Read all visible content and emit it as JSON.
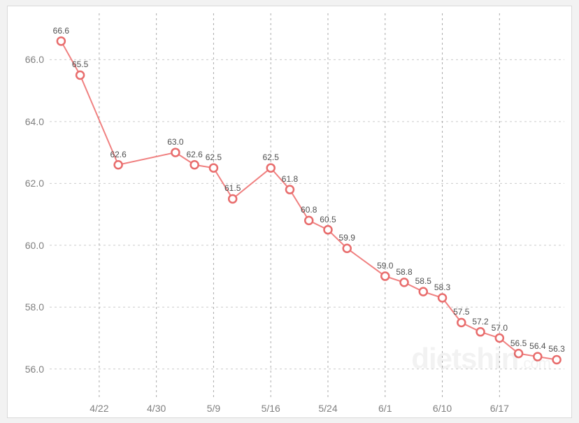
{
  "chart": {
    "type": "line",
    "background_color": "#ffffff",
    "page_background": "#f2f2f2",
    "border_color": "#d9d9d9",
    "plot": {
      "ylim": [
        55.0,
        67.5
      ],
      "ytick_step": 2.0,
      "yticks": [
        56.0,
        58.0,
        60.0,
        62.0,
        64.0,
        66.0
      ],
      "label_fontsize": 14,
      "label_color": "#808080",
      "grid_color_major": "#cccccc",
      "grid_color_minor": "#aaaaaa",
      "grid_dash": "3,4"
    },
    "x_axis": {
      "tick_labels": [
        "4/22",
        "4/30",
        "5/9",
        "5/16",
        "5/24",
        "6/1",
        "6/10",
        "6/17"
      ],
      "tick_positions": [
        2,
        5,
        8,
        11,
        14,
        17,
        20,
        23
      ]
    },
    "series": {
      "line_color": "#f08080",
      "line_width": 2,
      "marker_fill": "#ffffff",
      "marker_stroke": "#e86c6c",
      "marker_stroke_width": 2.5,
      "marker_radius": 5.5,
      "data_label_fontsize": 12,
      "data_label_color": "#505050",
      "points": [
        {
          "i": 0,
          "value": 66.6,
          "label": "66.6"
        },
        {
          "i": 1,
          "value": 65.5,
          "label": "65.5"
        },
        {
          "i": 3,
          "value": 62.6,
          "label": "62.6"
        },
        {
          "i": 6,
          "value": 63.0,
          "label": "63.0"
        },
        {
          "i": 7,
          "value": 62.6,
          "label": "62.6"
        },
        {
          "i": 8,
          "value": 62.5,
          "label": "62.5"
        },
        {
          "i": 9,
          "value": 61.5,
          "label": "61.5"
        },
        {
          "i": 11,
          "value": 62.5,
          "label": "62.5"
        },
        {
          "i": 12,
          "value": 61.8,
          "label": "61.8"
        },
        {
          "i": 13,
          "value": 60.8,
          "label": "60.8"
        },
        {
          "i": 14,
          "value": 60.5,
          "label": "60.5"
        },
        {
          "i": 15,
          "value": 59.9,
          "label": "59.9"
        },
        {
          "i": 17,
          "value": 59.0,
          "label": "59.0"
        },
        {
          "i": 18,
          "value": 58.8,
          "label": "58.8"
        },
        {
          "i": 19,
          "value": 58.5,
          "label": "58.5"
        },
        {
          "i": 20,
          "value": 58.3,
          "label": "58.3"
        },
        {
          "i": 21,
          "value": 57.5,
          "label": "57.5"
        },
        {
          "i": 22,
          "value": 57.2,
          "label": "57.2"
        },
        {
          "i": 23,
          "value": 57.0,
          "label": "57.0"
        },
        {
          "i": 24,
          "value": 56.5,
          "label": "56.5"
        },
        {
          "i": 25,
          "value": 56.4,
          "label": "56.4"
        },
        {
          "i": 26,
          "value": 56.3,
          "label": "56.3"
        }
      ],
      "x_count": 27
    },
    "watermark": {
      "main": "dietshin",
      "sub": ".com"
    }
  }
}
